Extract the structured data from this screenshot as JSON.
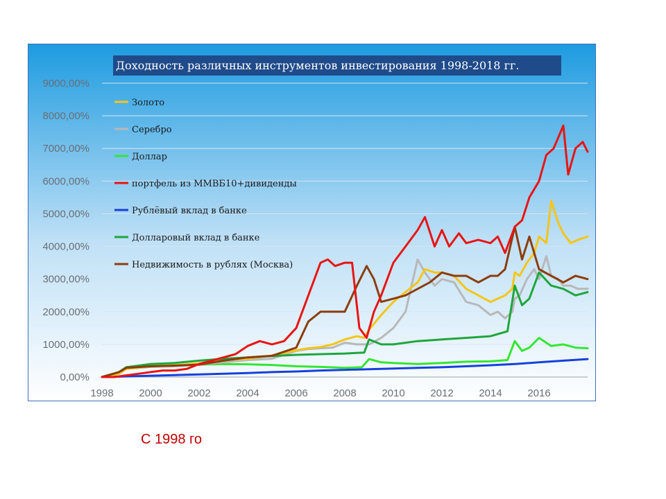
{
  "chart_data": {
    "type": "line",
    "title": "Доходность различных инструментов инвестирования 1998-2018 гг.",
    "xlabel": "",
    "ylabel": "",
    "xlim": [
      1998,
      2018
    ],
    "ylim": [
      0,
      9000
    ],
    "grid": true,
    "x_ticks": [
      "1998",
      "2000",
      "2002",
      "2004",
      "2006",
      "2008",
      "2010",
      "2012",
      "2014",
      "2016"
    ],
    "x_tick_values": [
      1998,
      2000,
      2002,
      2004,
      2006,
      2008,
      2010,
      2012,
      2014,
      2016
    ],
    "y_ticks": [
      "0,00%",
      "1000,00%",
      "2000,00%",
      "3000,00%",
      "4000,00%",
      "5000,00%",
      "6000,00%",
      "7000,00%",
      "8000,00%",
      "9000,00%"
    ],
    "y_tick_values": [
      0,
      1000,
      2000,
      3000,
      4000,
      5000,
      6000,
      7000,
      8000,
      9000
    ],
    "legend_position": "top-left",
    "series": [
      {
        "name": "Золото",
        "color": "#f5c518",
        "x": [
          1998,
          1998.7,
          1999,
          2000,
          2001,
          2002,
          2003,
          2004,
          2005,
          2006,
          2006.5,
          2007,
          2007.5,
          2008,
          2008.5,
          2008.8,
          2009,
          2009.5,
          2010,
          2010.5,
          2011,
          2011.3,
          2011.7,
          2012,
          2012.5,
          2013,
          2013.5,
          2014,
          2014.3,
          2014.6,
          2014.9,
          2015,
          2015.2,
          2015.5,
          2015.8,
          2016,
          2016.3,
          2016.5,
          2016.8,
          2017,
          2017.3,
          2017.6,
          2018
        ],
        "y": [
          0,
          100,
          250,
          330,
          360,
          420,
          520,
          560,
          660,
          820,
          880,
          920,
          1000,
          1150,
          1250,
          1200,
          1450,
          1900,
          2300,
          2600,
          2900,
          3300,
          3200,
          3200,
          3100,
          2700,
          2500,
          2300,
          2400,
          2500,
          2700,
          3200,
          3100,
          3500,
          3800,
          4300,
          4100,
          5400,
          4700,
          4400,
          4100,
          4200,
          4300
        ]
      },
      {
        "name": "Серебро",
        "color": "#b8b8b8",
        "x": [
          1998,
          1998.7,
          1999,
          2000,
          2001,
          2002,
          2003,
          2004,
          2005,
          2006,
          2006.5,
          2007,
          2007.5,
          2008,
          2008.5,
          2008.8,
          2009,
          2009.5,
          2010,
          2010.5,
          2011,
          2011.3,
          2011.7,
          2012,
          2012.5,
          2013,
          2013.5,
          2014,
          2014.3,
          2014.6,
          2014.9,
          2015,
          2015.2,
          2015.5,
          2015.8,
          2016,
          2016.3,
          2016.5,
          2016.8,
          2017,
          2017.3,
          2017.6,
          2018
        ],
        "y": [
          0,
          100,
          250,
          310,
          330,
          380,
          450,
          520,
          560,
          800,
          860,
          880,
          900,
          1050,
          1000,
          1000,
          1000,
          1200,
          1500,
          2000,
          3600,
          3200,
          2800,
          3000,
          2900,
          2300,
          2200,
          1900,
          2000,
          1800,
          2000,
          2400,
          2500,
          3000,
          3300,
          3000,
          3700,
          3100,
          3000,
          2800,
          2800,
          2700,
          2700
        ]
      },
      {
        "name": "Доллар",
        "color": "#33e633",
        "x": [
          1998,
          1998.7,
          1999,
          2000,
          2001,
          2002,
          2003,
          2004,
          2005,
          2006,
          2007,
          2008,
          2008.7,
          2009,
          2009.5,
          2010,
          2011,
          2012,
          2013,
          2014,
          2014.7,
          2015,
          2015.3,
          2015.6,
          2016,
          2016.5,
          2017,
          2017.5,
          2018
        ],
        "y": [
          0,
          150,
          300,
          340,
          360,
          380,
          400,
          390,
          370,
          330,
          310,
          280,
          300,
          550,
          450,
          430,
          400,
          430,
          470,
          480,
          520,
          1100,
          800,
          900,
          1200,
          950,
          1000,
          900,
          880
        ]
      },
      {
        "name": "портфель из ММВБ10+дивиденды",
        "color": "#e81414",
        "x": [
          1998,
          1998.5,
          1999,
          1999.5,
          2000,
          2000.5,
          2001,
          2001.5,
          2002,
          2002.5,
          2003,
          2003.5,
          2004,
          2004.5,
          2005,
          2005.5,
          2006,
          2006.5,
          2007,
          2007.3,
          2007.6,
          2008,
          2008.3,
          2008.6,
          2008.9,
          2009.2,
          2009.5,
          2010,
          2010.5,
          2011,
          2011.3,
          2011.7,
          2012,
          2012.3,
          2012.7,
          2013,
          2013.5,
          2014,
          2014.3,
          2014.6,
          2015,
          2015.3,
          2015.6,
          2016,
          2016.3,
          2016.6,
          2017,
          2017.2,
          2017.5,
          2017.8,
          2018
        ],
        "y": [
          0,
          0,
          50,
          100,
          150,
          200,
          200,
          250,
          400,
          500,
          600,
          700,
          950,
          1100,
          1000,
          1100,
          1500,
          2500,
          3500,
          3600,
          3400,
          3500,
          3500,
          1500,
          1200,
          2000,
          2500,
          3500,
          4000,
          4500,
          4900,
          4000,
          4500,
          4000,
          4400,
          4100,
          4200,
          4100,
          4300,
          3800,
          4600,
          4800,
          5500,
          6000,
          6800,
          7000,
          7700,
          6200,
          7000,
          7200,
          6900
        ]
      },
      {
        "name": "Рублёвый вклад в банке",
        "color": "#1640dc",
        "x": [
          1998,
          1999,
          2000,
          2001,
          2002,
          2003,
          2004,
          2005,
          2006,
          2007,
          2008,
          2009,
          2010,
          2011,
          2012,
          2013,
          2014,
          2015,
          2016,
          2017,
          2018
        ],
        "y": [
          0,
          20,
          40,
          60,
          80,
          100,
          120,
          150,
          170,
          200,
          220,
          240,
          260,
          280,
          300,
          330,
          360,
          400,
          450,
          500,
          550
        ]
      },
      {
        "name": "Долларовый вклад в банке",
        "color": "#1ea63c",
        "x": [
          1998,
          1998.7,
          1999,
          2000,
          2001,
          2002,
          2003,
          2004,
          2005,
          2006,
          2007,
          2008,
          2008.8,
          2009,
          2009.5,
          2010,
          2011,
          2012,
          2013,
          2014,
          2014.7,
          2015,
          2015.3,
          2015.6,
          2016,
          2016.5,
          2017,
          2017.5,
          2018
        ],
        "y": [
          0,
          150,
          300,
          400,
          430,
          500,
          560,
          600,
          640,
          680,
          700,
          720,
          750,
          1150,
          1000,
          1000,
          1100,
          1150,
          1200,
          1250,
          1400,
          2800,
          2200,
          2400,
          3200,
          2800,
          2700,
          2500,
          2600
        ]
      },
      {
        "name": "Недвижимость в рублях (Москва)",
        "color": "#8b3d0c",
        "x": [
          1998,
          1998.7,
          1999,
          2000,
          2001,
          2002,
          2003,
          2004,
          2005,
          2006,
          2006.5,
          2007,
          2007.5,
          2008,
          2008.5,
          2008.9,
          2009.2,
          2009.5,
          2010,
          2010.5,
          2011,
          2011.5,
          2012,
          2012.5,
          2013,
          2013.5,
          2014,
          2014.3,
          2014.6,
          2015,
          2015.3,
          2015.6,
          2016,
          2016.5,
          2017,
          2017.5,
          2018
        ],
        "y": [
          0,
          150,
          280,
          330,
          350,
          380,
          500,
          600,
          650,
          900,
          1700,
          2000,
          2000,
          2000,
          2800,
          3400,
          3000,
          2300,
          2400,
          2500,
          2700,
          2900,
          3200,
          3100,
          3100,
          2900,
          3100,
          3100,
          3300,
          4600,
          3600,
          4300,
          3300,
          3100,
          2900,
          3100,
          3000
        ]
      }
    ]
  },
  "caption": "С 1998 го"
}
